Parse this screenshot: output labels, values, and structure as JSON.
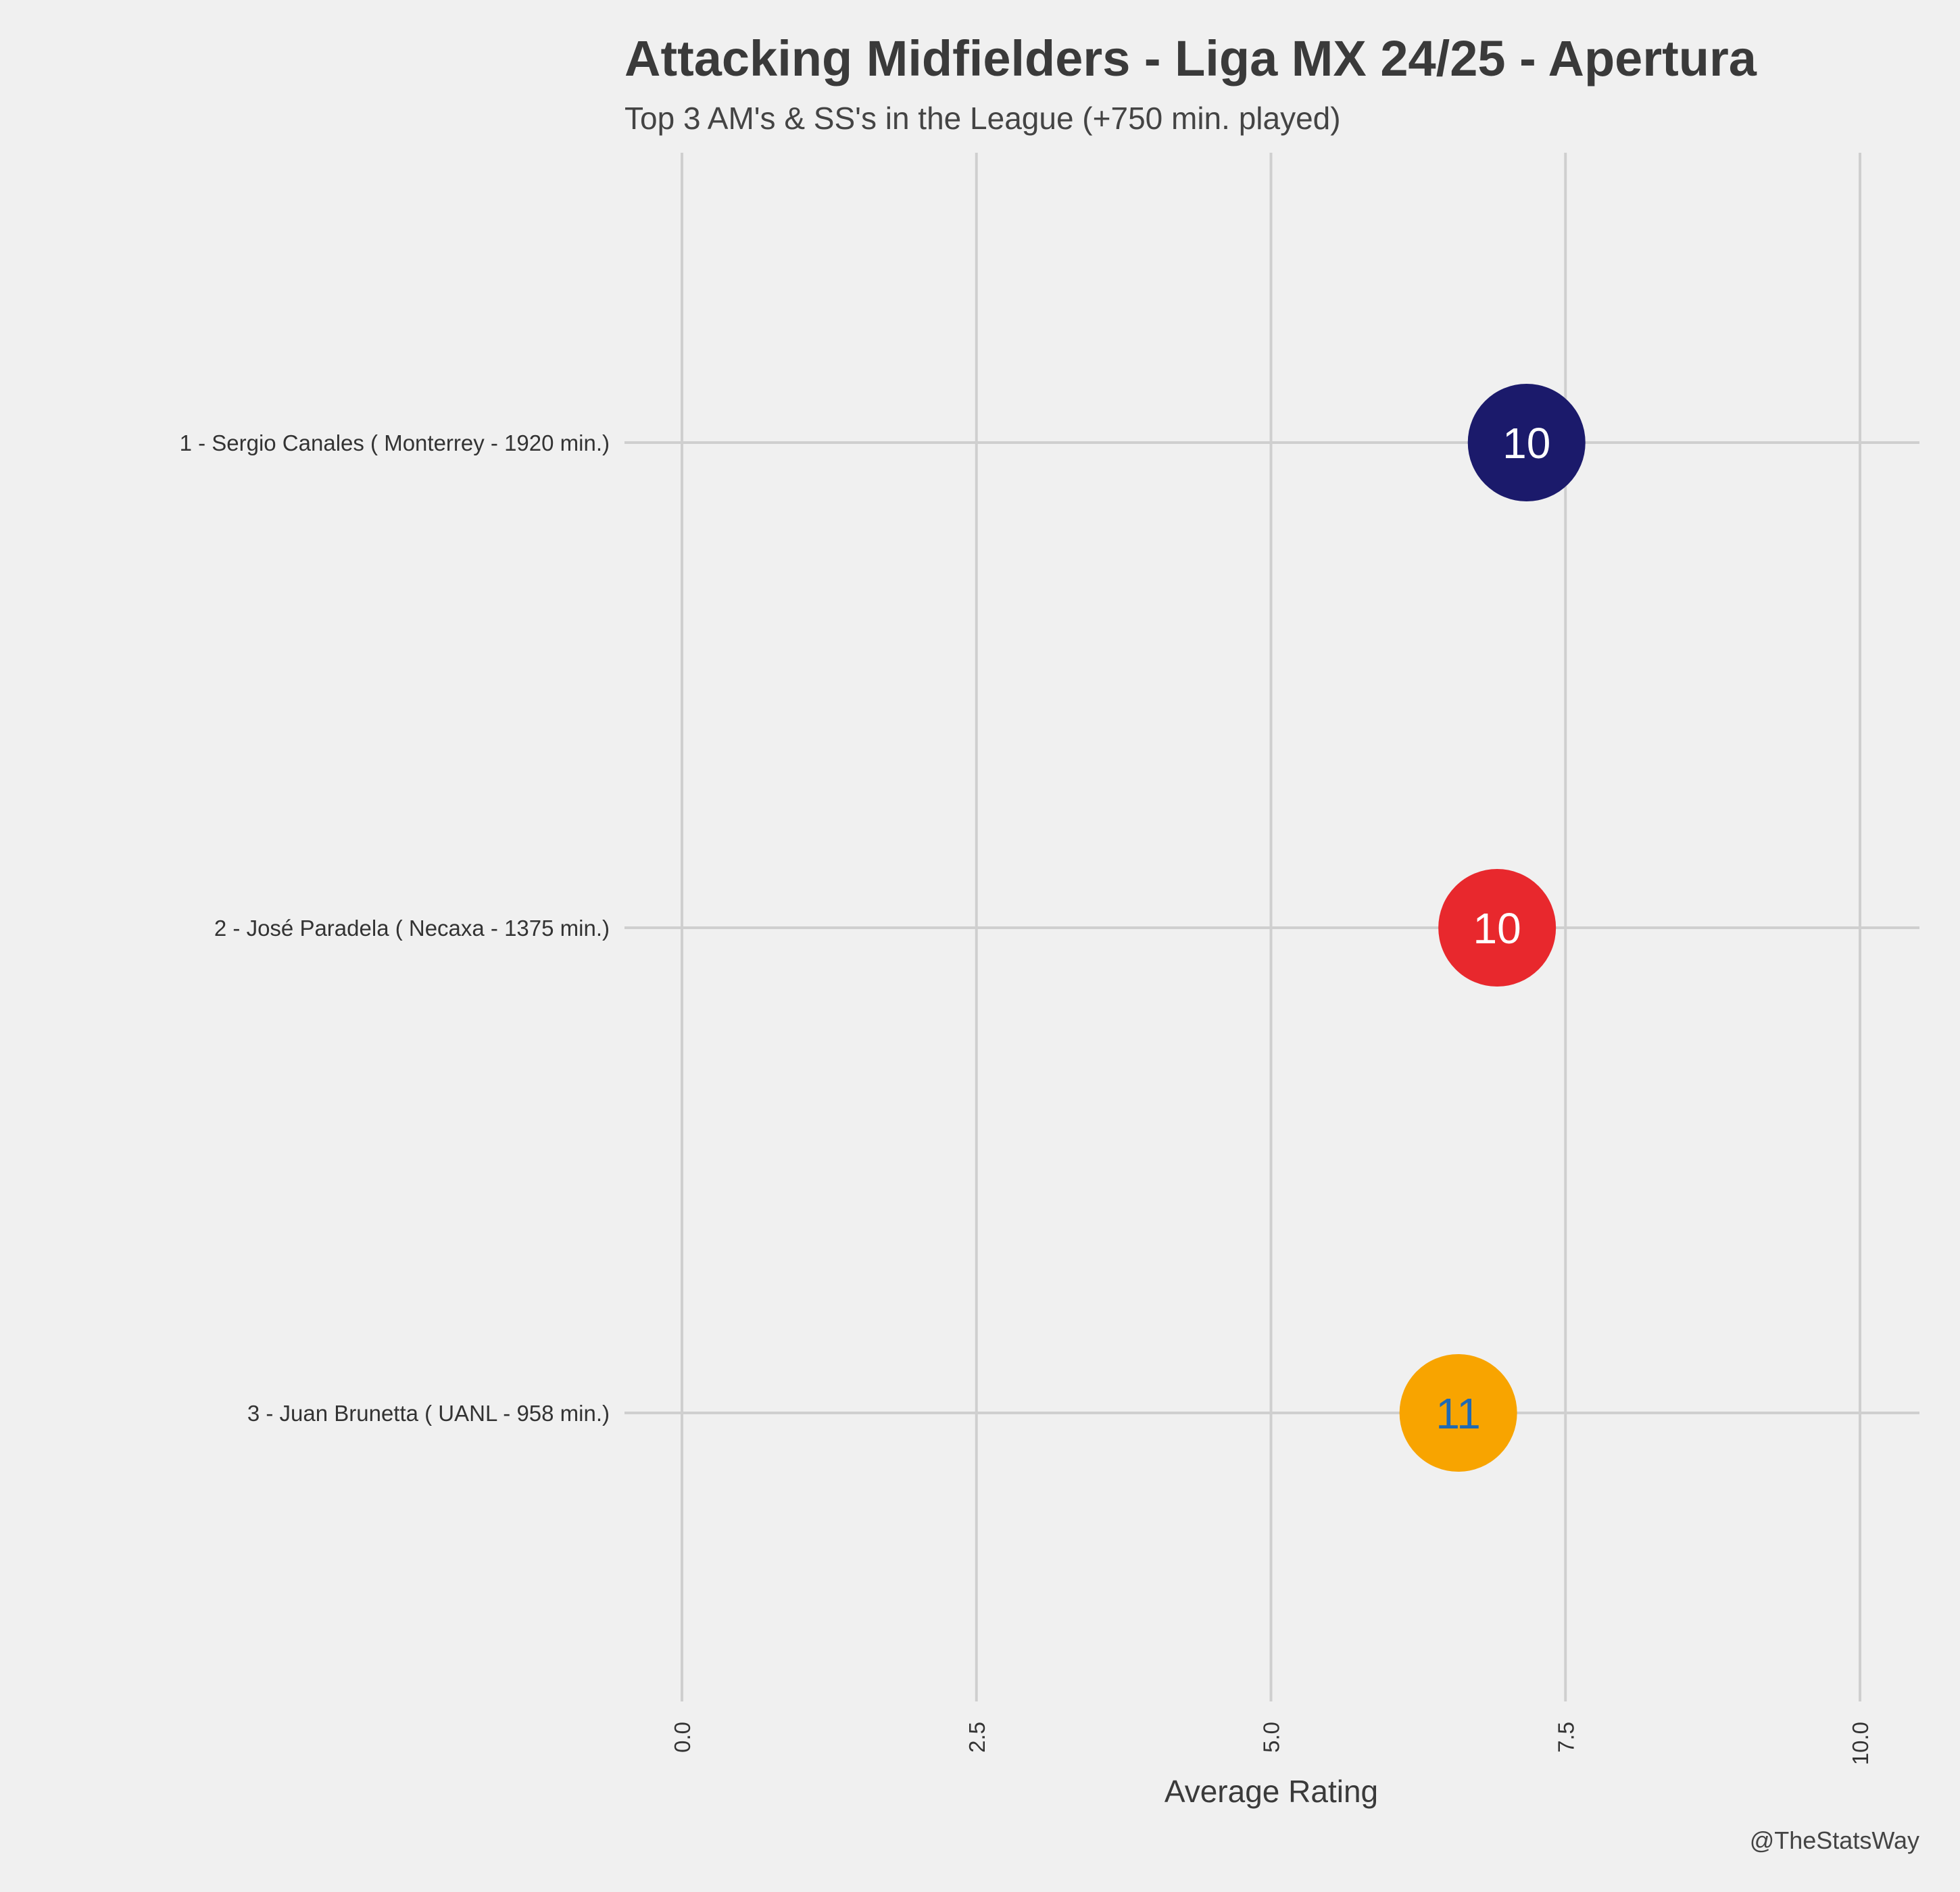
{
  "chart_data": {
    "type": "scatter",
    "title": "Attacking Midfielders - Liga MX 24/25 - Apertura",
    "subtitle": "Top 3 AM's & SS's in the League (+750 min. played)",
    "xlabel": "Average Rating",
    "xlim": [
      -0.5,
      10.5
    ],
    "xticks": [
      "0.0",
      "2.5",
      "5.0",
      "7.5",
      "10.0"
    ],
    "xtick_values": [
      0,
      2.5,
      5,
      7.5,
      10
    ],
    "grid": true,
    "points": [
      {
        "label": "1 - Sergio Canales  ( Monterrey - 1920 min.)",
        "rating": 7.17,
        "number": "10",
        "color": "#1b1a6b",
        "text_color": "#ffffff"
      },
      {
        "label": "2 - José Paradela  ( Necaxa - 1375 min.)",
        "rating": 6.92,
        "number": "10",
        "color": "#e8282d",
        "text_color": "#ffffff"
      },
      {
        "label": "3 - Juan Brunetta  ( UANL - 958 min.)",
        "rating": 6.59,
        "number": "11",
        "color": "#f8a400",
        "text_color": "#1f6ab4"
      }
    ]
  },
  "credit": "@TheStatsWay"
}
